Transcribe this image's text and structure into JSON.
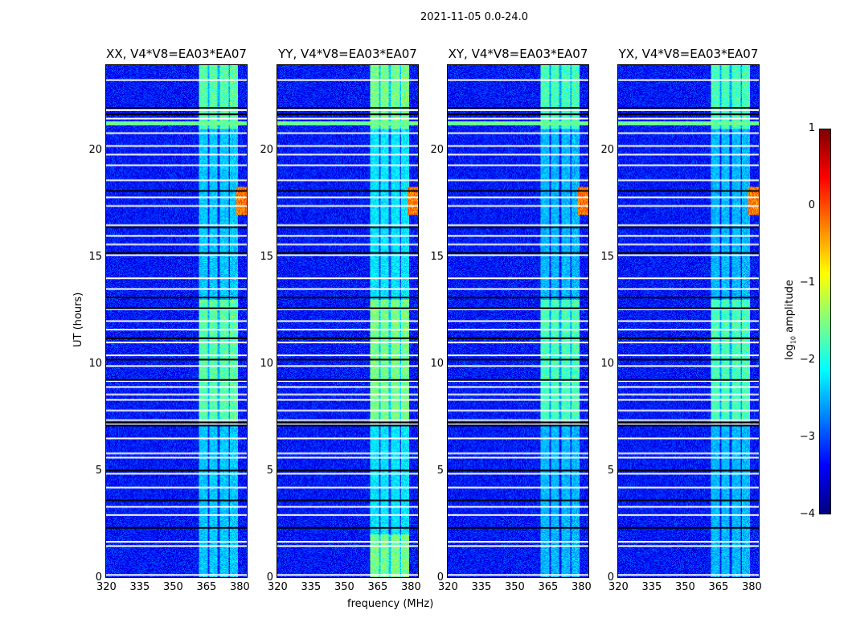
{
  "chart_data": {
    "type": "heatmap",
    "title": "2021-11-05 0.0-24.0",
    "xlabel": "frequency (MHz)",
    "ylabel": "UT (hours)",
    "xlim": [
      320,
      384
    ],
    "ylim": [
      0,
      24
    ],
    "xticks": [
      "320",
      "335",
      "350",
      "365",
      "380"
    ],
    "yticks": [
      "0",
      "5",
      "10",
      "15",
      "20"
    ],
    "panels": [
      {
        "title": "XX, V4*V8=EA03*EA07",
        "band_strength": 1.0
      },
      {
        "title": "YY, V4*V8=EA03*EA07",
        "band_strength": 1.2
      },
      {
        "title": "XY, V4*V8=EA03*EA07",
        "band_strength": 0.9
      },
      {
        "title": "YX, V4*V8=EA03*EA07",
        "band_strength": 0.9
      }
    ],
    "colorbar": {
      "label_prefix": "log",
      "label_sub": "10",
      "label_suffix": " amplitude",
      "range": [
        -4,
        1
      ],
      "ticks": [
        "1",
        "0",
        "−1",
        "−2",
        "−3",
        "−4"
      ],
      "colormap": "jet"
    },
    "background_log_amplitude": -3.3,
    "band_mhz": [
      362,
      380
    ],
    "band_log_amplitude_bright": -1.7,
    "band_bright_hours": [
      [
        7.3,
        13.0
      ],
      [
        21.0,
        24.0
      ]
    ],
    "rfi_hours": [
      17.0,
      18.3
    ],
    "flagged_white_hours": [
      0.1,
      1.45,
      1.65,
      2.9,
      3.3,
      4.2,
      4.85,
      5.6,
      5.8,
      6.5,
      7.15,
      7.35,
      7.8,
      8.3,
      8.55,
      8.9,
      9.2,
      9.9,
      10.4,
      11.0,
      11.6,
      12.0,
      12.55,
      13.5,
      14.0,
      15.1,
      15.6,
      16.0,
      16.5,
      17.4,
      17.8,
      18.6,
      19.3,
      19.8,
      20.2,
      20.8,
      21.5,
      21.9,
      23.3
    ],
    "flagged_black_hours": [
      2.3,
      3.6,
      5.0,
      7.1,
      7.25,
      9.25,
      10.2,
      11.2,
      12.6,
      13.1,
      15.2,
      16.4,
      18.1,
      21.7,
      22.0
    ]
  }
}
